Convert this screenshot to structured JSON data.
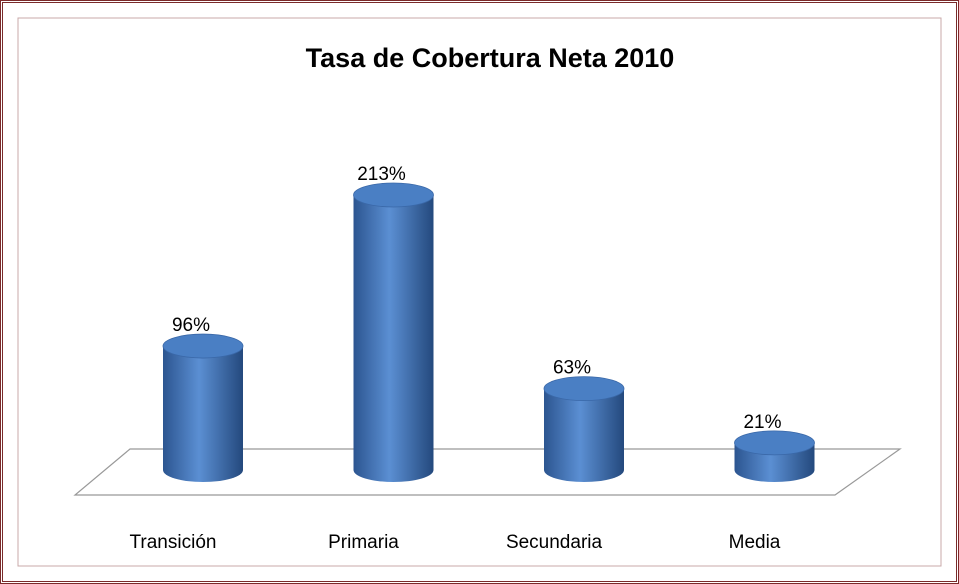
{
  "chart_data": {
    "type": "bar3d",
    "title": "Tasa de Cobertura Neta  2010",
    "categories": [
      "Transición",
      "Primaria",
      "Secundaria",
      "Media"
    ],
    "values": [
      96,
      213,
      63,
      21
    ],
    "value_labels": [
      "96%",
      "213%",
      "63%",
      "21%"
    ],
    "color": "#4f81bd"
  }
}
